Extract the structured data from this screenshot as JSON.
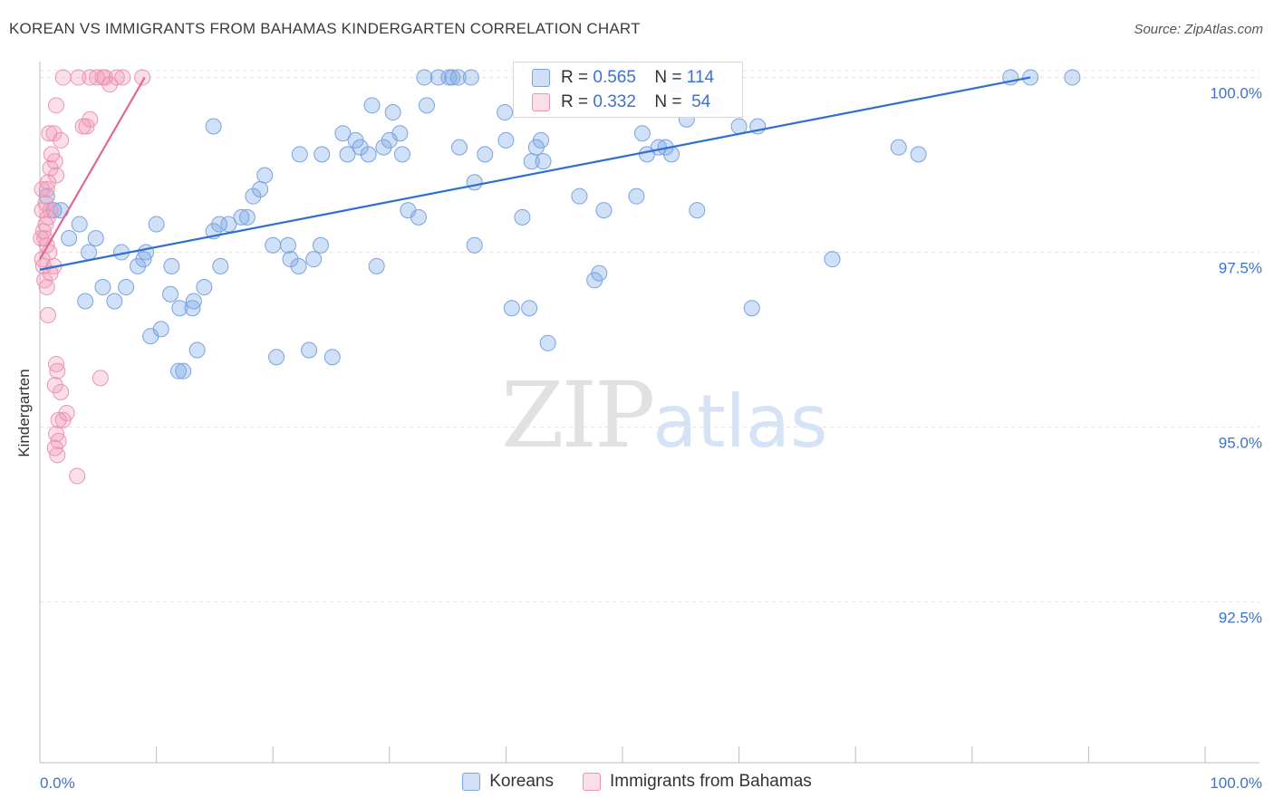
{
  "title": "KOREAN VS IMMIGRANTS FROM BAHAMAS KINDERGARTEN CORRELATION CHART",
  "source": "Source: ZipAtlas.com",
  "watermark": {
    "zip": "ZIP",
    "atlas": "atlas"
  },
  "stats": [
    {
      "r_label": "R =",
      "r_value": "0.565",
      "n_label": "N =",
      "n_value": "114"
    },
    {
      "r_label": "R =",
      "r_value": "0.332",
      "n_label": "N =",
      "n_value": "54"
    }
  ],
  "legend": [
    "Koreans",
    "Immigrants from Bahamas"
  ],
  "colors": {
    "korean_fill": "rgba(120,165,230,0.35)",
    "korean_stroke": "#7aa3e0",
    "korean_line": "#2f6fd0",
    "bahamas_fill": "rgba(240,150,180,0.30)",
    "bahamas_stroke": "#ef93b3",
    "bahamas_line": "#e06890",
    "tick_label": "#3d73c9"
  },
  "chart_data": {
    "type": "scatter",
    "ylabel": "Kindergarten",
    "xlabel": "",
    "xlim": [
      0,
      100
    ],
    "ylim": [
      90.2,
      100.2
    ],
    "x_tick_labels": [
      "0.0%",
      "100.0%"
    ],
    "y_ticks": [
      {
        "value": 100.0,
        "label": "100.0%"
      },
      {
        "value": 97.5,
        "label": "97.5%"
      },
      {
        "value": 95.0,
        "label": "95.0%"
      },
      {
        "value": 92.5,
        "label": "92.5%"
      }
    ],
    "series": [
      {
        "name": "Koreans",
        "trend": {
          "x": [
            0,
            85
          ],
          "y": [
            97.25,
            100.0
          ]
        },
        "points": [
          [
            0.6,
            98.3
          ],
          [
            1.2,
            98.1
          ],
          [
            1.8,
            98.1
          ],
          [
            3.4,
            97.9
          ],
          [
            2.5,
            97.7
          ],
          [
            4.8,
            97.7
          ],
          [
            7.0,
            97.5
          ],
          [
            9.1,
            97.5
          ],
          [
            4.2,
            97.5
          ],
          [
            8.4,
            97.3
          ],
          [
            8.9,
            97.4
          ],
          [
            11.3,
            97.3
          ],
          [
            5.4,
            97.0
          ],
          [
            7.4,
            97.0
          ],
          [
            6.4,
            96.8
          ],
          [
            3.9,
            96.8
          ],
          [
            10.4,
            96.4
          ],
          [
            9.5,
            96.3
          ],
          [
            12.0,
            96.7
          ],
          [
            11.2,
            96.9
          ],
          [
            13.1,
            96.7
          ],
          [
            13.2,
            96.8
          ],
          [
            14.1,
            97.0
          ],
          [
            15.5,
            97.3
          ],
          [
            13.5,
            96.1
          ],
          [
            11.9,
            95.8
          ],
          [
            12.3,
            95.8
          ],
          [
            10.0,
            97.9
          ],
          [
            15.4,
            97.9
          ],
          [
            14.9,
            97.8
          ],
          [
            16.2,
            97.9
          ],
          [
            17.3,
            98.0
          ],
          [
            17.8,
            98.0
          ],
          [
            18.9,
            98.4
          ],
          [
            18.3,
            98.3
          ],
          [
            19.3,
            98.6
          ],
          [
            14.9,
            99.3
          ],
          [
            20.0,
            97.6
          ],
          [
            21.3,
            97.6
          ],
          [
            21.5,
            97.4
          ],
          [
            22.2,
            97.3
          ],
          [
            23.5,
            97.4
          ],
          [
            24.1,
            97.6
          ],
          [
            20.3,
            96.0
          ],
          [
            23.1,
            96.1
          ],
          [
            25.1,
            96.0
          ],
          [
            22.3,
            98.9
          ],
          [
            24.2,
            98.9
          ],
          [
            26.0,
            99.2
          ],
          [
            27.1,
            99.1
          ],
          [
            26.4,
            98.9
          ],
          [
            28.5,
            99.6
          ],
          [
            27.5,
            99.0
          ],
          [
            28.2,
            98.9
          ],
          [
            29.5,
            99.0
          ],
          [
            30.0,
            99.1
          ],
          [
            30.3,
            99.5
          ],
          [
            31.1,
            98.9
          ],
          [
            28.9,
            97.3
          ],
          [
            30.9,
            99.2
          ],
          [
            33.0,
            100.0
          ],
          [
            34.2,
            100.0
          ],
          [
            35.1,
            100.0
          ],
          [
            35.9,
            100.0
          ],
          [
            37.0,
            100.0
          ],
          [
            33.2,
            99.6
          ],
          [
            36.0,
            99.0
          ],
          [
            35.4,
            100.0
          ],
          [
            38.2,
            98.9
          ],
          [
            40.0,
            99.1
          ],
          [
            39.9,
            99.5
          ],
          [
            37.3,
            98.5
          ],
          [
            31.6,
            98.1
          ],
          [
            32.5,
            98.0
          ],
          [
            37.3,
            97.6
          ],
          [
            42.2,
            98.8
          ],
          [
            41.4,
            98.0
          ],
          [
            42.6,
            99.0
          ],
          [
            43.0,
            99.1
          ],
          [
            43.2,
            98.8
          ],
          [
            43.4,
            100.0
          ],
          [
            45.3,
            100.0
          ],
          [
            46.3,
            98.3
          ],
          [
            48.4,
            98.1
          ],
          [
            47.6,
            97.1
          ],
          [
            48.0,
            97.2
          ],
          [
            40.5,
            96.7
          ],
          [
            42.0,
            96.7
          ],
          [
            43.6,
            96.2
          ],
          [
            47.2,
            100.0
          ],
          [
            50.3,
            100.0
          ],
          [
            51.2,
            98.3
          ],
          [
            51.7,
            99.2
          ],
          [
            52.1,
            98.9
          ],
          [
            53.1,
            99.0
          ],
          [
            53.7,
            99.0
          ],
          [
            54.2,
            98.9
          ],
          [
            54.3,
            99.9
          ],
          [
            54.8,
            99.9
          ],
          [
            55.5,
            99.4
          ],
          [
            55.9,
            100.0
          ],
          [
            56.2,
            100.0
          ],
          [
            57.3,
            99.6
          ],
          [
            57.9,
            99.6
          ],
          [
            60.0,
            99.3
          ],
          [
            61.6,
            99.3
          ],
          [
            56.4,
            98.1
          ],
          [
            68.0,
            97.4
          ],
          [
            61.1,
            96.7
          ],
          [
            83.3,
            100.0
          ],
          [
            85.0,
            100.0
          ],
          [
            88.6,
            100.0
          ],
          [
            73.7,
            99.0
          ],
          [
            75.4,
            98.9
          ]
        ]
      },
      {
        "name": "Immigrants from Bahamas",
        "trend": {
          "x": [
            0,
            9.0
          ],
          "y": [
            97.4,
            100.0
          ]
        },
        "points": [
          [
            2.0,
            100.0
          ],
          [
            3.3,
            100.0
          ],
          [
            4.3,
            100.0
          ],
          [
            4.9,
            100.0
          ],
          [
            5.4,
            100.0
          ],
          [
            5.6,
            100.0
          ],
          [
            6.0,
            99.9
          ],
          [
            6.6,
            100.0
          ],
          [
            7.1,
            100.0
          ],
          [
            8.8,
            100.0
          ],
          [
            1.4,
            99.6
          ],
          [
            3.7,
            99.3
          ],
          [
            4.0,
            99.3
          ],
          [
            4.3,
            99.4
          ],
          [
            0.8,
            99.2
          ],
          [
            1.2,
            99.2
          ],
          [
            1.8,
            99.1
          ],
          [
            1.0,
            98.9
          ],
          [
            0.9,
            98.7
          ],
          [
            1.3,
            98.8
          ],
          [
            1.4,
            98.6
          ],
          [
            0.7,
            98.5
          ],
          [
            0.2,
            98.4
          ],
          [
            0.6,
            98.4
          ],
          [
            0.5,
            98.2
          ],
          [
            0.9,
            98.1
          ],
          [
            0.2,
            98.1
          ],
          [
            0.7,
            98.0
          ],
          [
            0.5,
            97.9
          ],
          [
            0.3,
            97.8
          ],
          [
            0.1,
            97.7
          ],
          [
            0.4,
            97.7
          ],
          [
            0.6,
            97.6
          ],
          [
            0.8,
            97.5
          ],
          [
            0.2,
            97.4
          ],
          [
            0.3,
            97.3
          ],
          [
            1.2,
            97.3
          ],
          [
            0.9,
            97.2
          ],
          [
            0.4,
            97.1
          ],
          [
            0.6,
            97.0
          ],
          [
            0.7,
            96.6
          ],
          [
            1.4,
            95.9
          ],
          [
            1.5,
            95.8
          ],
          [
            1.3,
            95.6
          ],
          [
            1.8,
            95.5
          ],
          [
            2.3,
            95.2
          ],
          [
            2.0,
            95.1
          ],
          [
            1.6,
            95.1
          ],
          [
            1.4,
            94.9
          ],
          [
            1.6,
            94.8
          ],
          [
            1.3,
            94.7
          ],
          [
            1.5,
            94.6
          ],
          [
            3.2,
            94.3
          ],
          [
            5.2,
            95.7
          ]
        ]
      }
    ]
  }
}
